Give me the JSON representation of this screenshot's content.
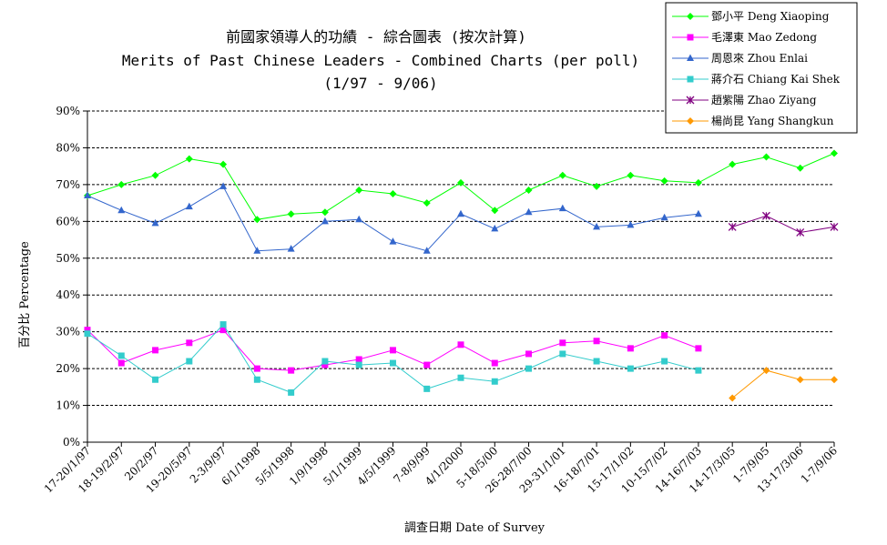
{
  "chart_data": {
    "type": "line",
    "title": "前國家領導人的功績  - 綜合圖表 (按次計算)",
    "subtitle": "Merits of Past Chinese Leaders - Combined Charts (per poll)",
    "subtitle2": "(1/97 - 9/06)",
    "xlabel": "調查日期 Date of Survey",
    "ylabel": "百分比 Percentage",
    "ylim": [
      0,
      90
    ],
    "ytick_step": 10,
    "ytick_labels": [
      "0%",
      "10%",
      "20%",
      "30%",
      "40%",
      "50%",
      "60%",
      "70%",
      "80%",
      "90%"
    ],
    "grid": "horizontal-dashed",
    "legend_position": "top-right",
    "categories": [
      "17-20/1/97",
      "18-19/2/97",
      "20/2/97",
      "19-20/5/97",
      "2-3/9/97",
      "6/1/1998",
      "5/5/1998",
      "1/9/1998",
      "5/1/1999",
      "4/5/1999",
      "7-8/9/99",
      "4/1/2000",
      "5-18/5/00",
      "26-28/7/00",
      "29-31/1/01",
      "16-18/7/01",
      "15-17/1/02",
      "10-15/7/02",
      "14-16/7/03",
      "14-17/3/05",
      "1-7/9/05",
      "13-17/3/06",
      "1-7/9/06"
    ],
    "series": [
      {
        "name": "鄧小平 Deng Xiaoping",
        "color": "#00ff00",
        "marker": "diamond",
        "values": [
          67,
          70,
          72.5,
          77,
          75.5,
          60.5,
          62,
          62.5,
          68.5,
          67.5,
          65,
          70.5,
          63,
          68.5,
          72.5,
          69.5,
          72.5,
          71,
          70.5,
          75.5,
          77.5,
          74.5,
          78.5
        ]
      },
      {
        "name": "毛澤東 Mao Zedong",
        "color": "#ff00ff",
        "marker": "square",
        "values": [
          30.5,
          21.5,
          25,
          27,
          30.5,
          20,
          19.5,
          21,
          22.5,
          25,
          21,
          26.5,
          21.5,
          24,
          27,
          27.5,
          25.5,
          29,
          25.5,
          null,
          null,
          null,
          null
        ]
      },
      {
        "name": "周恩來 Zhou Enlai",
        "color": "#3366cc",
        "marker": "triangle",
        "values": [
          67,
          63,
          59.5,
          64,
          69.5,
          52,
          52.5,
          60,
          60.5,
          54.5,
          52,
          62,
          58,
          62.5,
          63.5,
          58.5,
          59,
          61,
          62,
          null,
          null,
          null,
          null
        ]
      },
      {
        "name": "蔣介石 Chiang Kai Shek",
        "color": "#33cccc",
        "marker": "square",
        "values": [
          29.5,
          23.5,
          17,
          22,
          32,
          17,
          13.5,
          22,
          21,
          21.5,
          14.5,
          17.5,
          16.5,
          20,
          24,
          22,
          20,
          22,
          19.5,
          null,
          null,
          null,
          null
        ]
      },
      {
        "name": "趙紫陽 Zhao Ziyang",
        "color": "#800080",
        "marker": "star",
        "values": [
          null,
          null,
          null,
          null,
          null,
          null,
          null,
          null,
          null,
          null,
          null,
          null,
          null,
          null,
          null,
          null,
          null,
          null,
          null,
          58.5,
          61.5,
          57,
          58.5
        ]
      },
      {
        "name": "楊尚昆 Yang Shangkun",
        "color": "#ff9900",
        "marker": "diamond",
        "values": [
          null,
          null,
          null,
          null,
          null,
          null,
          null,
          null,
          null,
          null,
          null,
          null,
          null,
          null,
          null,
          null,
          null,
          null,
          null,
          12,
          19.5,
          17,
          17
        ]
      }
    ]
  }
}
